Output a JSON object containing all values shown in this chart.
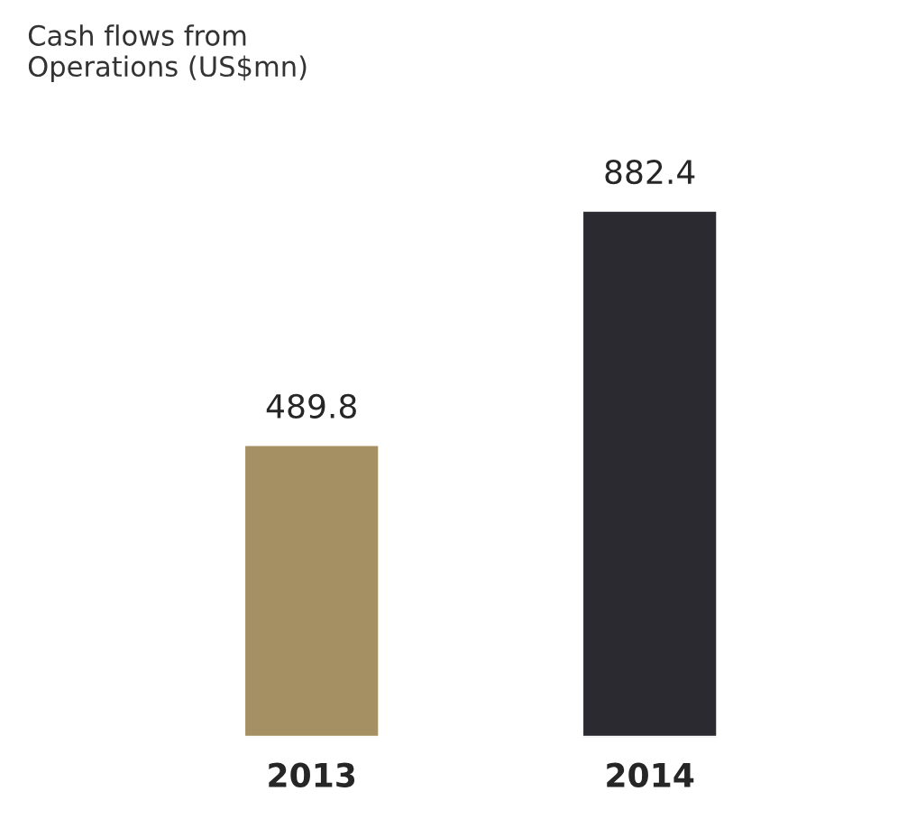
{
  "chart_data": {
    "type": "bar",
    "title": "Cash flows from\nOperations (US$mn)",
    "categories": [
      "2013",
      "2014"
    ],
    "values": [
      489.8,
      882.4
    ],
    "colors": [
      "#a59063",
      "#2a2a30"
    ],
    "data_labels": true
  }
}
